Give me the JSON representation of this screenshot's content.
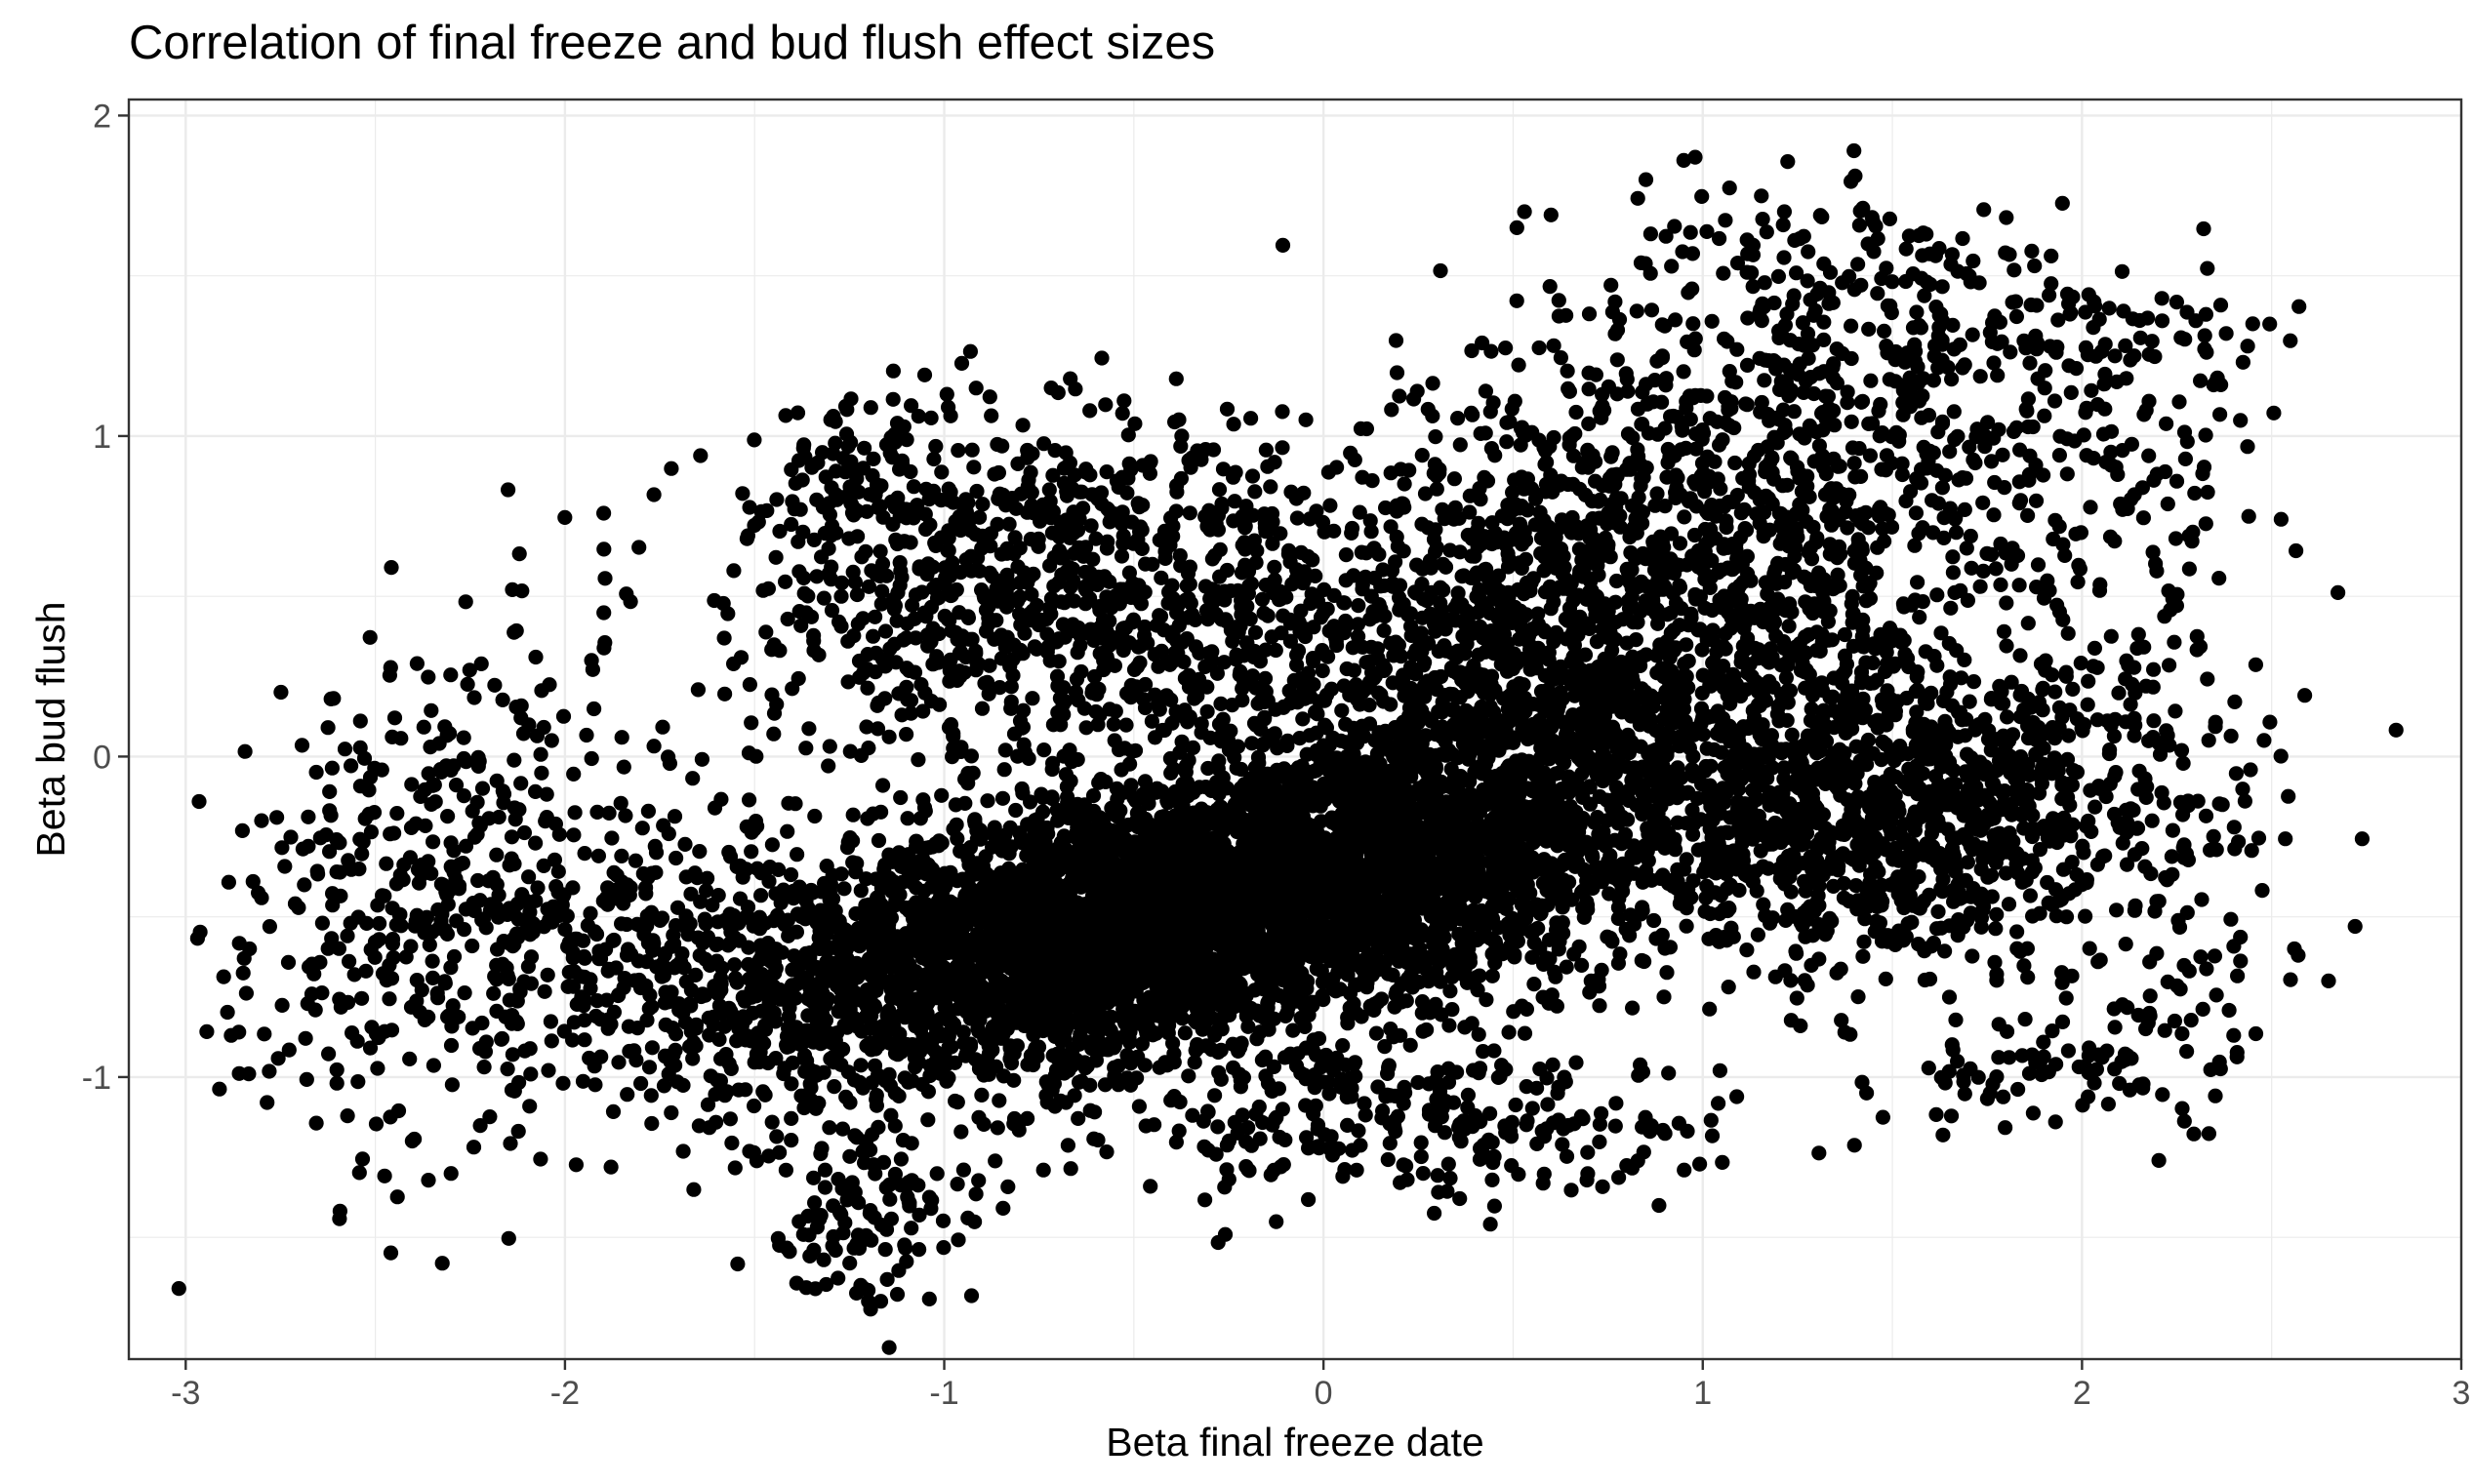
{
  "chart_data": {
    "type": "scatter",
    "title": "Correlation of final freeze and bud flush effect sizes",
    "xlabel": "Beta final freeze date",
    "ylabel": "Beta bud flush",
    "xlim": [
      -3.15,
      3.0
    ],
    "ylim": [
      -1.88,
      2.05
    ],
    "x_ticks": [
      -3,
      -2,
      -1,
      0,
      1,
      2,
      3
    ],
    "x_tick_labels": [
      "-3",
      "-2",
      "-1",
      "0",
      "1",
      "2",
      "3"
    ],
    "y_ticks": [
      -1,
      0,
      1,
      2
    ],
    "y_tick_labels": [
      "-1",
      "0",
      "1",
      "2"
    ],
    "grid": true,
    "legend": "none",
    "point_color": "#000000",
    "clusters": [
      {
        "x": -0.45,
        "y": -0.5,
        "sx": 0.45,
        "sy": 0.22,
        "rho": 0.45,
        "n": 2600
      },
      {
        "x": 0.2,
        "y": -0.3,
        "sx": 0.45,
        "sy": 0.3,
        "rho": 0.4,
        "n": 2000
      },
      {
        "x": -0.9,
        "y": -0.65,
        "sx": 0.4,
        "sy": 0.28,
        "rho": 0.3,
        "n": 900
      },
      {
        "x": 1.5,
        "y": -0.15,
        "sx": 0.42,
        "sy": 0.25,
        "rho": 0.0,
        "n": 1300
      },
      {
        "x": 0.8,
        "y": 0.5,
        "sx": 0.5,
        "sy": 0.35,
        "rho": 0.3,
        "n": 1200
      },
      {
        "x": -0.4,
        "y": 0.45,
        "sx": 0.5,
        "sy": 0.25,
        "rho": 0.0,
        "n": 700
      },
      {
        "x": -1.0,
        "y": 0.55,
        "sx": 0.3,
        "sy": 0.3,
        "rho": 0.0,
        "n": 300
      },
      {
        "x": -2.35,
        "y": -0.4,
        "sx": 0.28,
        "sy": 0.42,
        "rho": 0.25,
        "n": 420
      },
      {
        "x": -1.7,
        "y": -0.65,
        "sx": 0.3,
        "sy": 0.22,
        "rho": 0.0,
        "n": 350
      },
      {
        "x": 1.2,
        "y": 1.05,
        "sx": 0.45,
        "sy": 0.3,
        "rho": 0.2,
        "n": 450
      },
      {
        "x": 1.35,
        "y": 1.55,
        "sx": 0.3,
        "sy": 0.15,
        "rho": 0.0,
        "n": 90
      },
      {
        "x": 2.1,
        "y": 0.8,
        "sx": 0.22,
        "sy": 0.35,
        "rho": 0.0,
        "n": 120
      },
      {
        "x": -1.2,
        "y": -1.45,
        "sx": 0.12,
        "sy": 0.15,
        "rho": 0.0,
        "n": 110
      },
      {
        "x": 0.3,
        "y": -1.15,
        "sx": 0.4,
        "sy": 0.12,
        "rho": 0.0,
        "n": 250
      },
      {
        "x": 1.9,
        "y": -1.0,
        "sx": 0.2,
        "sy": 0.08,
        "rho": 0.0,
        "n": 70
      },
      {
        "x": 2.25,
        "y": -0.7,
        "sx": 0.1,
        "sy": 0.25,
        "rho": 0.0,
        "n": 50
      },
      {
        "x": -0.65,
        "y": 0.78,
        "sx": 0.3,
        "sy": 0.08,
        "rho": 0.0,
        "n": 100
      },
      {
        "x": -1.25,
        "y": 0.9,
        "sx": 0.12,
        "sy": 0.12,
        "rho": 0.0,
        "n": 60
      },
      {
        "x": 2.0,
        "y": 1.3,
        "sx": 0.2,
        "sy": 0.1,
        "rho": 0.0,
        "n": 40
      }
    ],
    "outliers": [
      {
        "x": 2.45,
        "y": 1.35
      },
      {
        "x": 2.38,
        "y": 1.32
      },
      {
        "x": 2.3,
        "y": 1.36
      },
      {
        "x": 2.72,
        "y": -0.53
      },
      {
        "x": 2.65,
        "y": -0.7
      },
      {
        "x": 2.56,
        "y": -0.6
      },
      {
        "x": 2.57,
        "y": -0.62
      },
      {
        "x": 2.4,
        "y": -0.87
      },
      {
        "x": -2.86,
        "y": -0.86
      },
      {
        "x": -2.88,
        "y": -0.87
      },
      {
        "x": -2.8,
        "y": -0.2
      },
      {
        "x": -2.76,
        "y": -0.19
      },
      {
        "x": 0.95,
        "y": 1.86
      },
      {
        "x": 0.98,
        "y": 1.87
      },
      {
        "x": 0.85,
        "y": 1.8
      },
      {
        "x": 0.53,
        "y": 1.7
      },
      {
        "x": 0.6,
        "y": 1.69
      },
      {
        "x": 0.51,
        "y": 1.65
      },
      {
        "x": -1.93,
        "y": 0.3
      },
      {
        "x": -1.85,
        "y": 0.06
      },
      {
        "x": -1.2,
        "y": -1.7
      },
      {
        "x": -1.22,
        "y": -1.65
      },
      {
        "x": 2.37,
        "y": -0.15
      },
      {
        "x": 1.93,
        "y": -1.14
      }
    ]
  }
}
